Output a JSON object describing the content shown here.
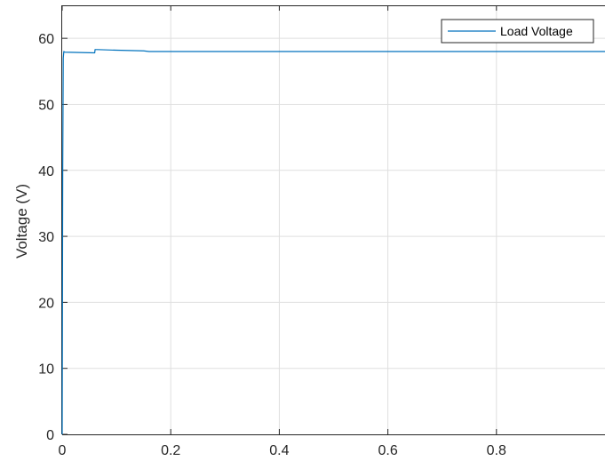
{
  "chart_data": {
    "type": "line",
    "title": "",
    "xlabel": "",
    "ylabel": "Voltage (V)",
    "xlim": [
      0,
      1
    ],
    "ylim": [
      0,
      65
    ],
    "xticks": [
      0,
      0.2,
      0.4,
      0.6,
      0.8
    ],
    "xtick_labels": [
      "0",
      "0.2",
      "0.4",
      "0.6",
      "0.8"
    ],
    "yticks": [
      0,
      10,
      20,
      30,
      40,
      50,
      60
    ],
    "ytick_labels": [
      "0",
      "10",
      "20",
      "30",
      "40",
      "50",
      "60"
    ],
    "grid": true,
    "legend_position": "top-right",
    "series": [
      {
        "name": "Load Voltage",
        "color": "#0072BD",
        "x": [
          0,
          0.001,
          0.002,
          0.003,
          0.005,
          0.06,
          0.0605,
          0.065,
          0.1,
          0.15,
          0.16,
          0.4,
          0.6,
          1.0
        ],
        "y": [
          0,
          40,
          57,
          58,
          57.9,
          57.8,
          58.3,
          58.3,
          58.2,
          58.1,
          58.0,
          58.0,
          58.0,
          58.0
        ]
      }
    ]
  }
}
